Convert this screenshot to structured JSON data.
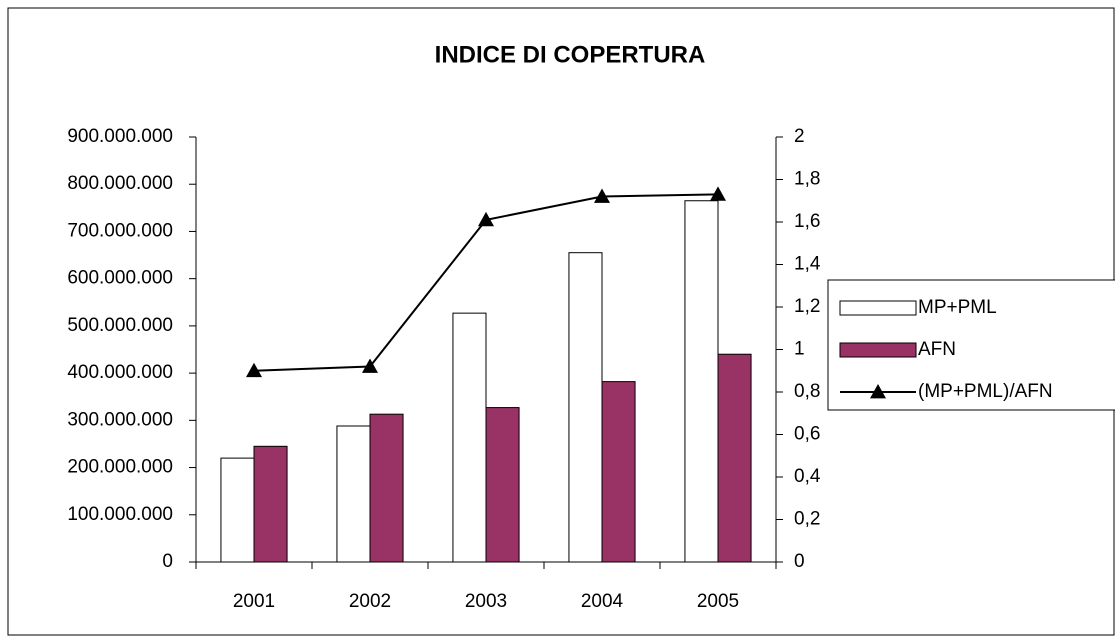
{
  "chart_data": {
    "type": "bar",
    "title": "INDICE DI COPERTURA",
    "categories": [
      "2001",
      "2002",
      "2003",
      "2004",
      "2005"
    ],
    "series": [
      {
        "name": "MP+PML",
        "type": "bar",
        "color": "#ffffff",
        "values": [
          220000000,
          288000000,
          527000000,
          655000000,
          765000000
        ]
      },
      {
        "name": "AFN",
        "type": "bar",
        "color": "#993366",
        "values": [
          245000000,
          313000000,
          327000000,
          382000000,
          440000000
        ]
      },
      {
        "name": "(MP+PML)/AFN",
        "type": "line",
        "axis": "y2",
        "color": "#000000",
        "marker": "triangle",
        "values": [
          0.9,
          0.92,
          1.61,
          1.72,
          1.73
        ]
      }
    ],
    "ylim": [
      0,
      900000000
    ],
    "yticks": [
      0,
      {
        "value": 100000000,
        "label": "100.000.000"
      },
      {
        "value": 200000000,
        "label": "200.000.000"
      },
      {
        "value": 300000000,
        "label": "300.000.000"
      },
      {
        "value": 400000000,
        "label": "400.000.000"
      },
      {
        "value": 500000000,
        "label": "500.000.000"
      },
      {
        "value": 600000000,
        "label": "600.000.000"
      },
      {
        "value": 700000000,
        "label": "700.000.000"
      },
      {
        "value": 800000000,
        "label": "800.000.000"
      },
      {
        "value": 900000000,
        "label": "900.000.000"
      }
    ],
    "y2lim": [
      0,
      2
    ],
    "y2ticks": [
      0,
      {
        "value": 0.2,
        "label": "0,2"
      },
      {
        "value": 0.4,
        "label": "0,4"
      },
      {
        "value": 0.6,
        "label": "0,6"
      },
      {
        "value": 0.8,
        "label": "0,8"
      },
      1,
      {
        "value": 1.2,
        "label": "1,2"
      },
      {
        "value": 1.4,
        "label": "1,4"
      },
      {
        "value": 1.6,
        "label": "1,6"
      },
      {
        "value": 1.8,
        "label": "1,8"
      },
      2
    ],
    "legend": "right"
  }
}
